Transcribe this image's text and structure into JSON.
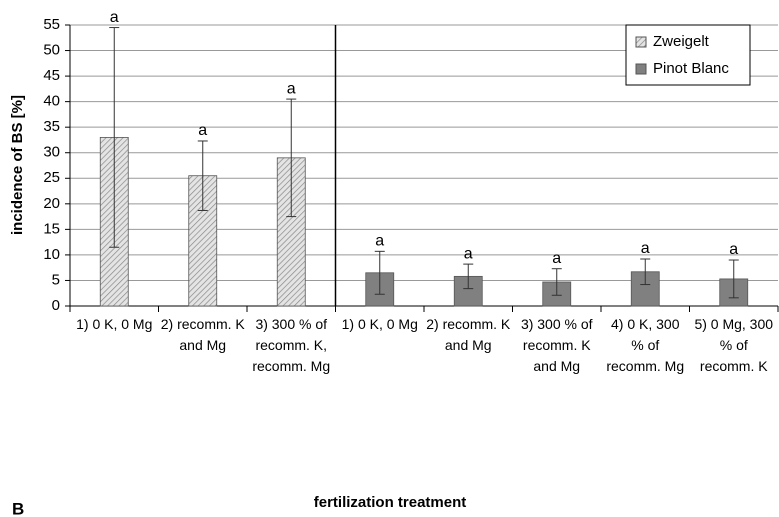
{
  "chart_data": {
    "type": "bar",
    "ylabel": "incidence of BS [%]",
    "xlabel": "fertilization treatment",
    "panel": "B",
    "categories": [
      "1) 0 K, 0 Mg",
      "2) recomm. K and Mg",
      "3) 300 % of recomm. K, recomm. Mg",
      "1) 0 K, 0 Mg",
      "2) recomm. K and Mg",
      "3) 300 % of recomm. K and Mg",
      "4) 0 K, 300 % of recomm. Mg",
      "5) 0 Mg, 300 % of recomm. K"
    ],
    "series": [
      {
        "name": "Zweigelt",
        "color": "#c8c8c8",
        "pattern": "hatch",
        "values": [
          33,
          25.5,
          29,
          null,
          null,
          null,
          null,
          null
        ],
        "errors": [
          21.5,
          6.8,
          11.5,
          null,
          null,
          null,
          null,
          null
        ],
        "letters": [
          "a",
          "a",
          "a",
          null,
          null,
          null,
          null,
          null
        ]
      },
      {
        "name": "Pinot Blanc",
        "color": "#808080",
        "values": [
          null,
          null,
          null,
          6.5,
          5.8,
          4.7,
          6.7,
          5.3
        ],
        "errors": [
          null,
          null,
          null,
          4.2,
          2.4,
          2.6,
          2.5,
          3.7
        ],
        "letters": [
          null,
          null,
          null,
          "a",
          "a",
          "a",
          "a",
          "a"
        ]
      }
    ],
    "ylim": [
      0,
      55
    ],
    "yticks": [
      0,
      5,
      10,
      15,
      20,
      25,
      30,
      35,
      40,
      45,
      50,
      55
    ],
    "grid": true,
    "legend": "upper right"
  }
}
